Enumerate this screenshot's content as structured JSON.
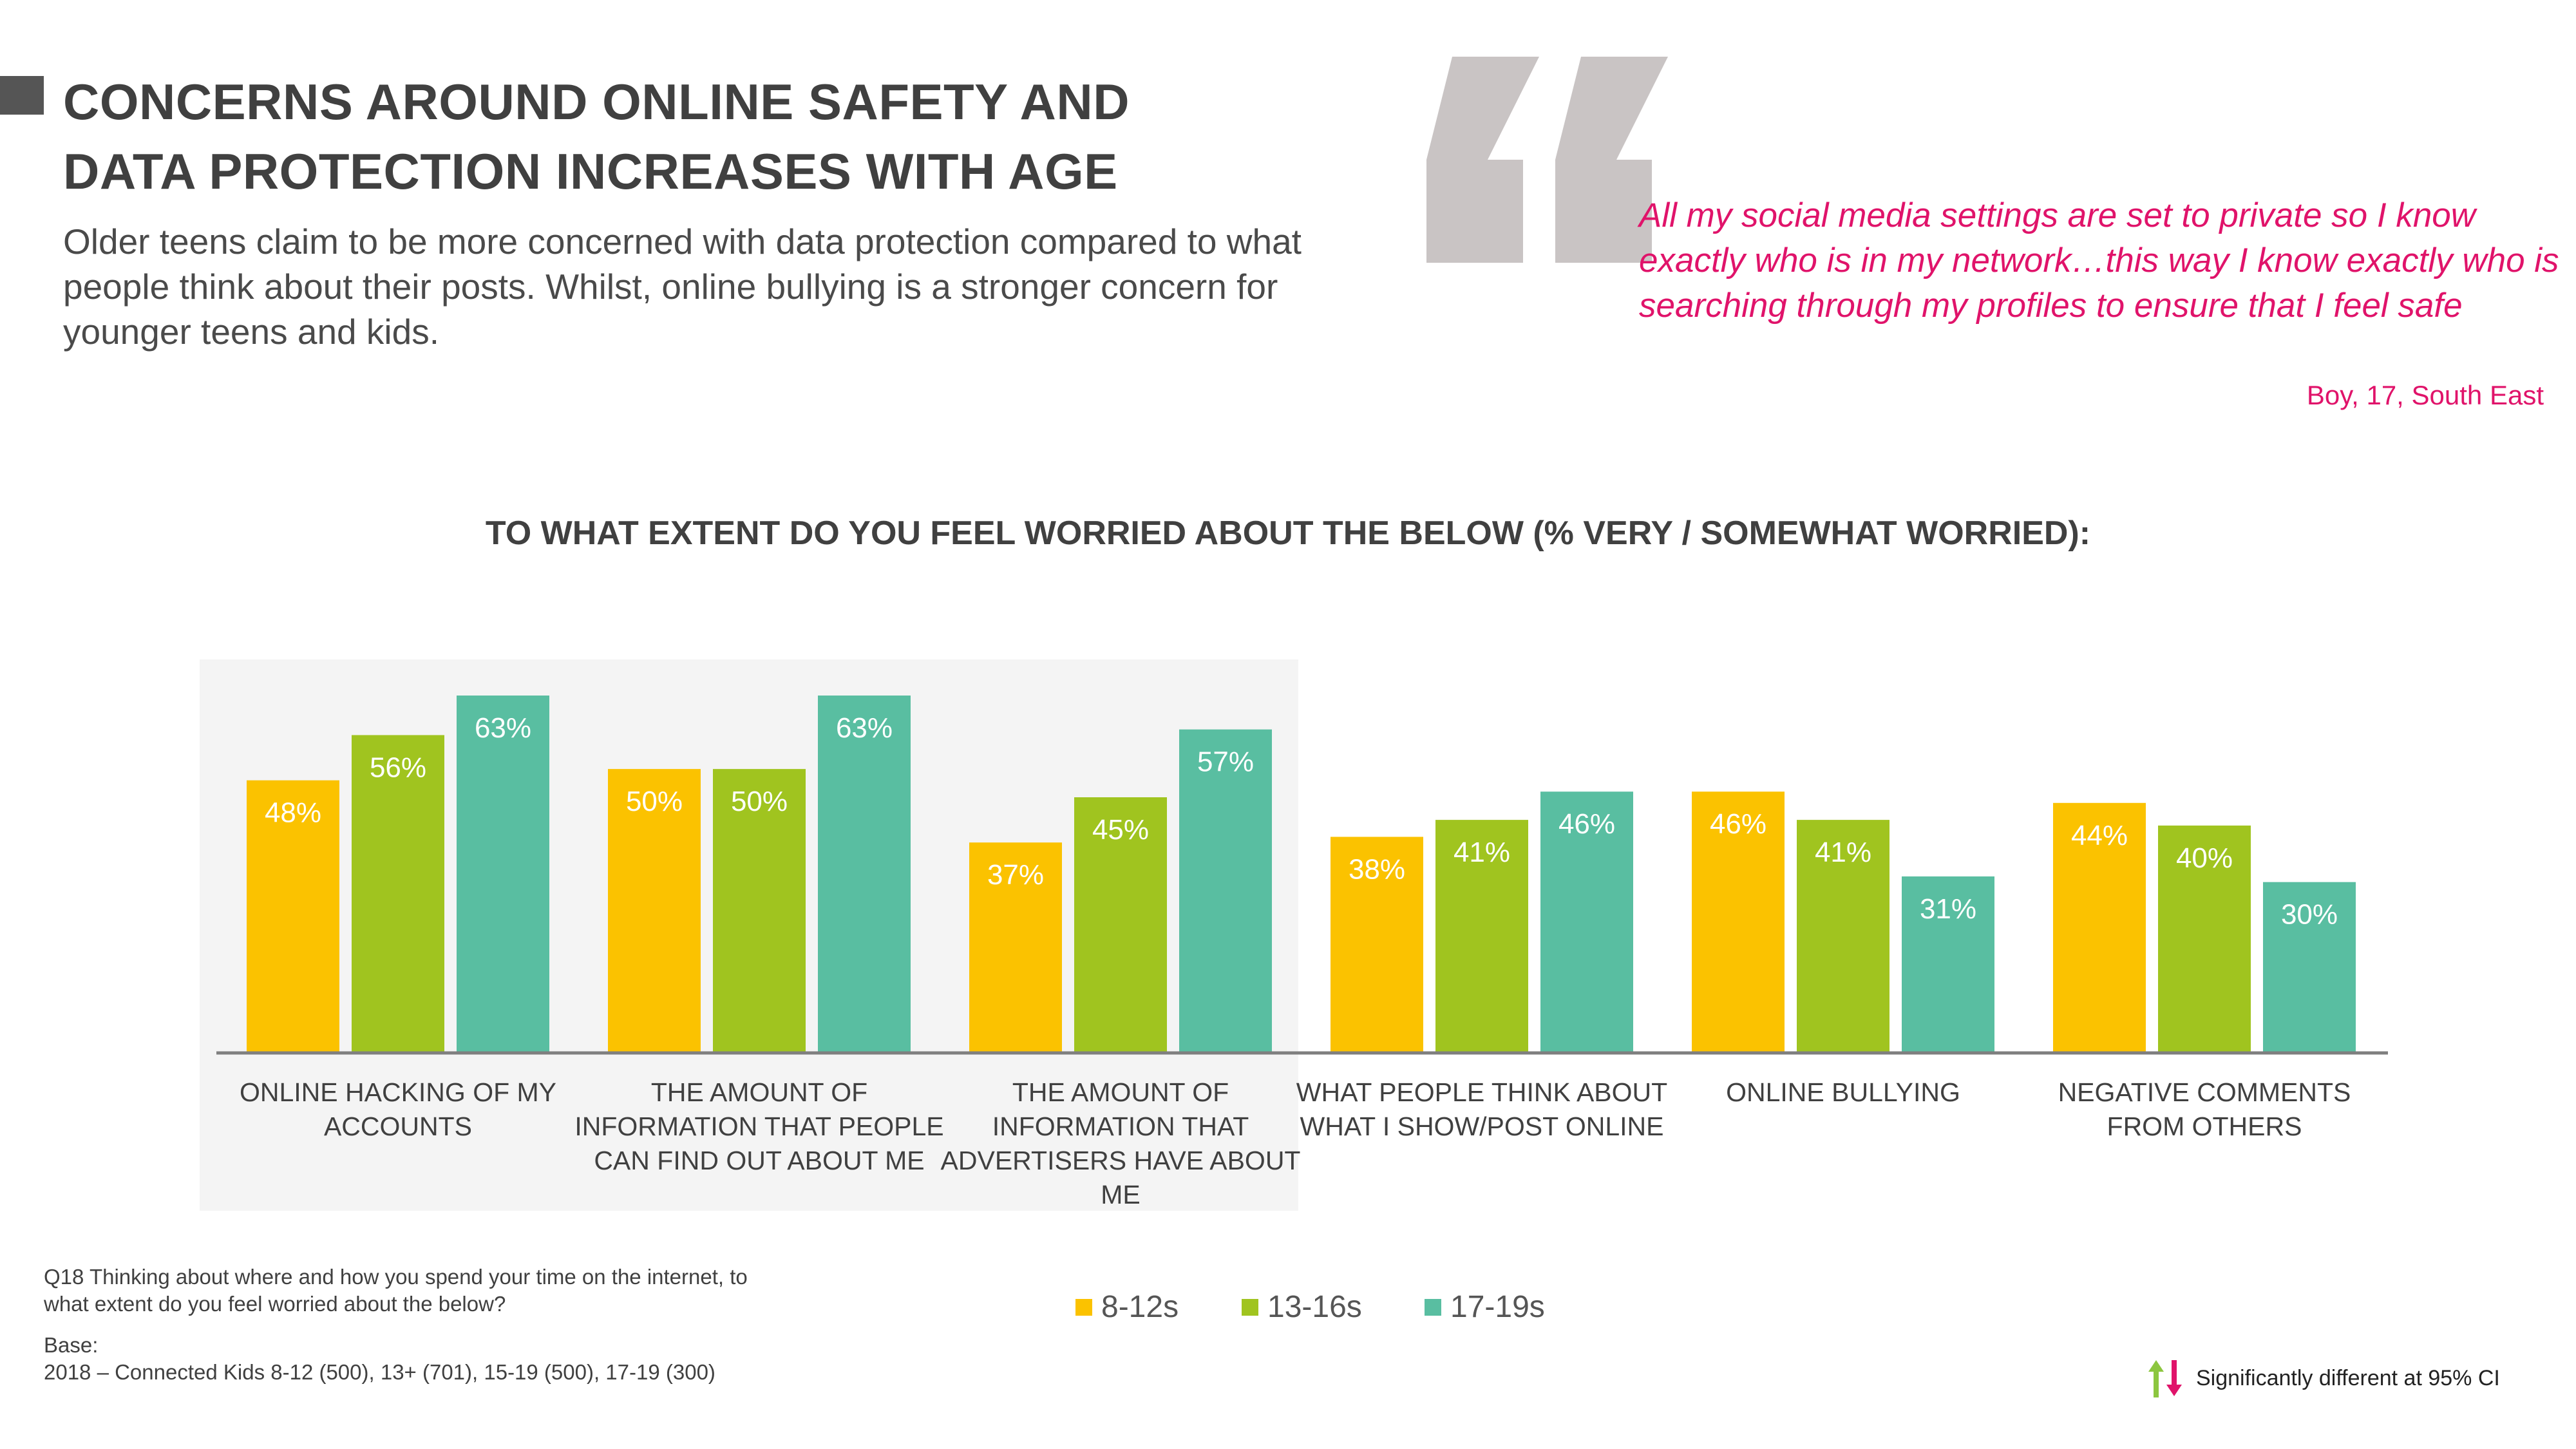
{
  "header": {
    "title_line1": "CONCERNS AROUND ONLINE SAFETY AND",
    "title_line2": "DATA PROTECTION INCREASES WITH AGE",
    "intro": "Older teens claim to be more concerned with data protection compared to what people think about their posts. Whilst, online bullying is a stronger concern for younger teens and kids."
  },
  "quote": {
    "text": "All my social media settings are set to private so I know exactly who is in my network…this way I know exactly who is searching through my profiles to ensure that I feel safe",
    "author": "Boy, 17, South East",
    "color": "#e0136a",
    "quote_mark_color": "#c9c4c4"
  },
  "chart_data": {
    "type": "bar",
    "title": "TO WHAT EXTENT DO YOU FEEL WORRIED ABOUT THE BELOW (% VERY / SOMEWHAT WORRIED):",
    "categories": [
      "ONLINE HACKING OF MY ACCOUNTS",
      "THE AMOUNT OF INFORMATION THAT PEOPLE CAN FIND OUT ABOUT ME",
      "THE AMOUNT OF INFORMATION THAT ADVERTISERS HAVE ABOUT ME",
      "WHAT PEOPLE THINK ABOUT WHAT I SHOW/POST ONLINE",
      "ONLINE BULLYING",
      "NEGATIVE COMMENTS FROM OTHERS"
    ],
    "series": [
      {
        "name": "8-12s",
        "color": "#fbc200",
        "values": [
          48,
          50,
          37,
          38,
          46,
          44
        ]
      },
      {
        "name": "13-16s",
        "color": "#a0c41f",
        "values": [
          56,
          50,
          45,
          41,
          41,
          40
        ]
      },
      {
        "name": "17-19s",
        "color": "#59bea1",
        "values": [
          63,
          63,
          57,
          46,
          31,
          30
        ]
      }
    ],
    "value_suffix": "%",
    "ylim": [
      0,
      63
    ],
    "grid": false,
    "legend_position": "bottom",
    "highlighted_categories": [
      0,
      1,
      2
    ]
  },
  "footnote": {
    "question": "Q18 Thinking about where and how you spend your time on the internet, to what extent do you feel worried about the below?",
    "base_label": "Base:",
    "base_text": "2018 – Connected Kids 8-12 (500), 13+ (701), 15-19 (500), 17-19 (300)"
  },
  "significance": {
    "text": "Significantly different at 95% CI",
    "up_color": "#8cc63f",
    "down_color": "#e0136a",
    "icons": [
      "arrow-up-icon",
      "arrow-down-icon"
    ]
  }
}
